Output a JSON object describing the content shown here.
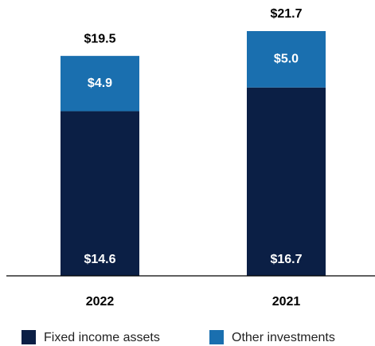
{
  "chart_data": {
    "type": "stacked_bar",
    "categories": [
      "2022",
      "2021"
    ],
    "series": [
      {
        "name": "Fixed income assets",
        "color": "#0b1f45",
        "values": [
          14.6,
          16.7
        ],
        "value_labels": [
          "$14.6",
          "$16.7"
        ]
      },
      {
        "name": "Other investments",
        "color": "#1a6faf",
        "values": [
          4.9,
          5.0
        ],
        "value_labels": [
          "$4.9",
          "$5.0"
        ]
      }
    ],
    "totals": {
      "values": [
        19.5,
        21.7
      ],
      "value_labels": [
        "$19.5",
        "$21.7"
      ]
    }
  }
}
